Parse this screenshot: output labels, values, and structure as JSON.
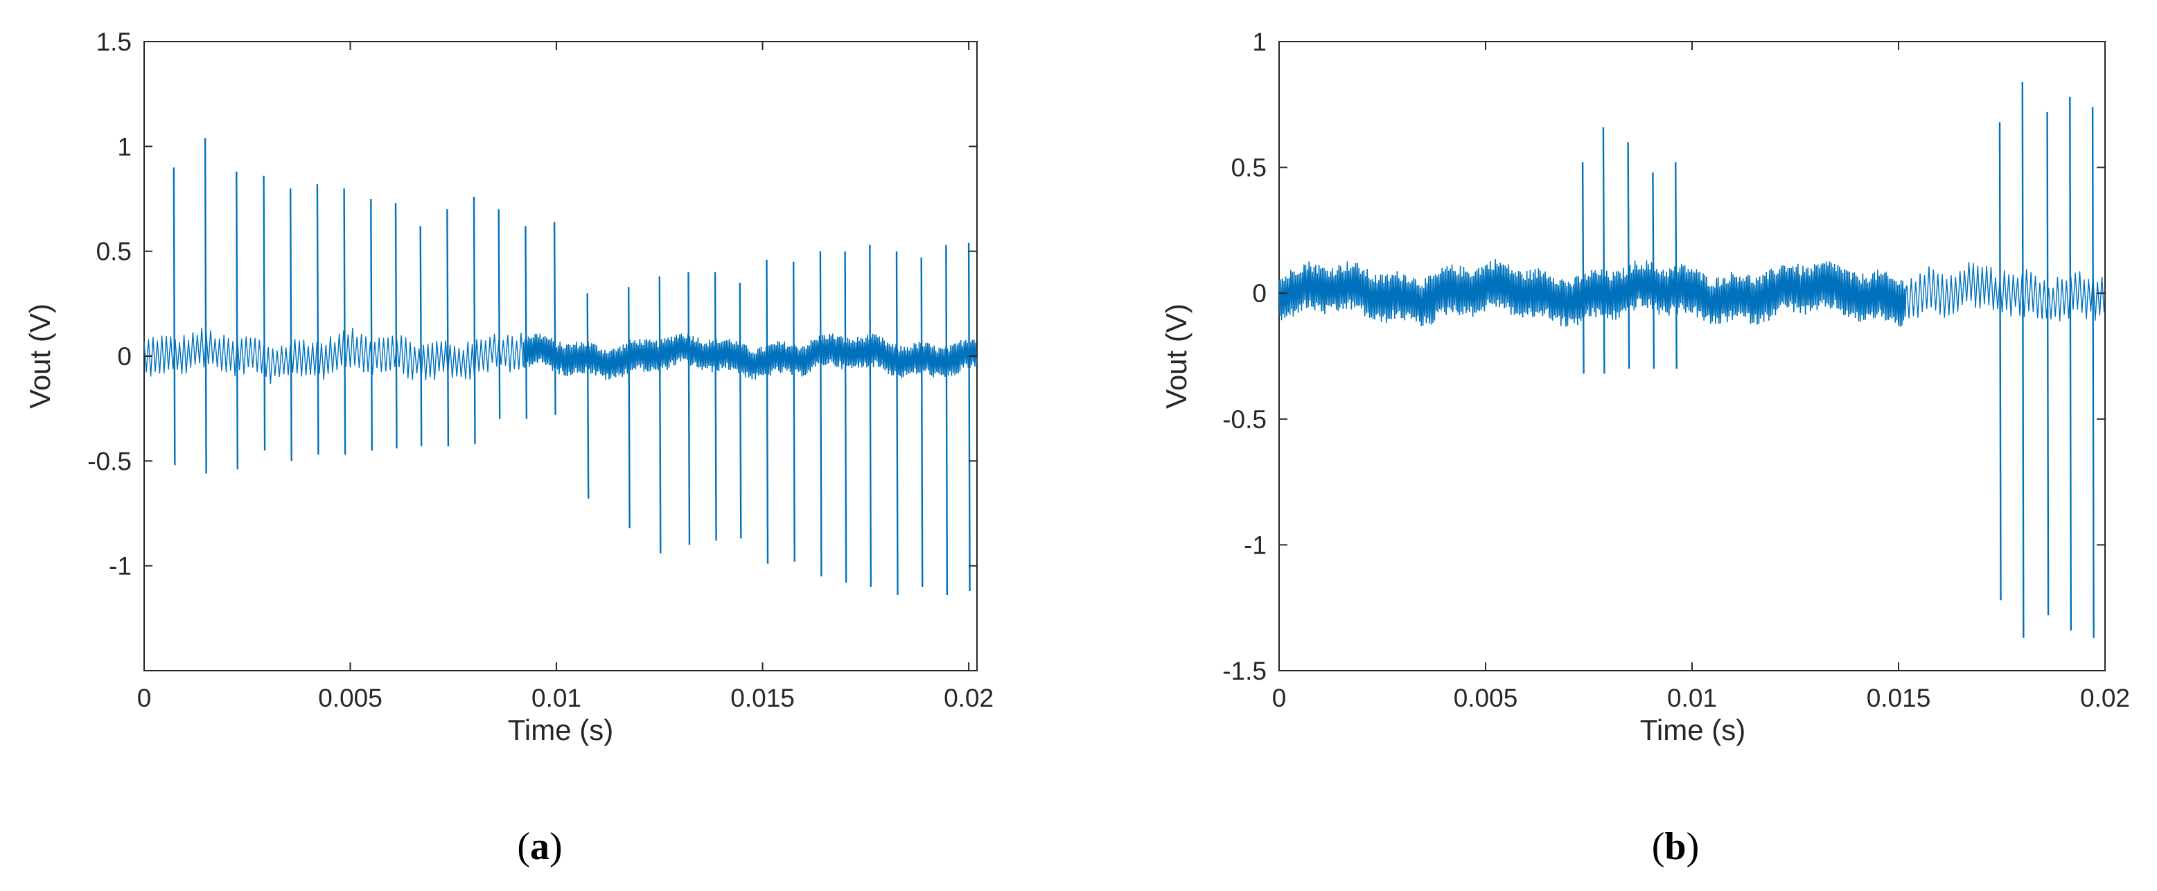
{
  "chart_data": [
    {
      "panel_label": "a",
      "type": "line",
      "xlabel": "Time (s)",
      "ylabel": "Vout (V)",
      "xlim": [
        0,
        0.0202
      ],
      "ylim": [
        -1.5,
        1.5
      ],
      "xticks": [
        "0",
        "0.005",
        "0.01",
        "0.015",
        "0.02"
      ],
      "xtick_values": [
        0,
        0.005,
        0.01,
        0.015,
        0.02
      ],
      "yticks": [
        "1.5",
        "1",
        "0.5",
        "0",
        "-0.5",
        "-1"
      ],
      "ytick_values": [
        1.5,
        1,
        0.5,
        0,
        -0.5,
        -1
      ],
      "grid": false,
      "color": "#0072BD",
      "baseline": {
        "segments": [
          {
            "x0": 0,
            "x1": 0.0092,
            "amplitude": 0.1,
            "density": "sparse"
          },
          {
            "x0": 0.0092,
            "x1": 0.0202,
            "amplitude": 0.08,
            "density": "dense"
          }
        ]
      },
      "spikes": [
        {
          "x": 0.00072,
          "max": 0.9,
          "min": -0.52
        },
        {
          "x": 0.00148,
          "max": 1.04,
          "min": -0.56
        },
        {
          "x": 0.00224,
          "max": 0.88,
          "min": -0.54
        },
        {
          "x": 0.0029,
          "max": 0.86,
          "min": -0.45
        },
        {
          "x": 0.00355,
          "max": 0.8,
          "min": -0.5
        },
        {
          "x": 0.0042,
          "max": 0.82,
          "min": -0.47
        },
        {
          "x": 0.00485,
          "max": 0.8,
          "min": -0.47
        },
        {
          "x": 0.0055,
          "max": 0.75,
          "min": -0.45
        },
        {
          "x": 0.0061,
          "max": 0.73,
          "min": -0.44
        },
        {
          "x": 0.0067,
          "max": 0.62,
          "min": -0.43
        },
        {
          "x": 0.00735,
          "max": 0.7,
          "min": -0.43
        },
        {
          "x": 0.008,
          "max": 0.76,
          "min": -0.42
        },
        {
          "x": 0.0086,
          "max": 0.7,
          "min": -0.3
        },
        {
          "x": 0.00925,
          "max": 0.62,
          "min": -0.3
        },
        {
          "x": 0.00995,
          "max": 0.64,
          "min": -0.28
        },
        {
          "x": 0.01075,
          "max": 0.3,
          "min": -0.68
        },
        {
          "x": 0.01175,
          "max": 0.33,
          "min": -0.82
        },
        {
          "x": 0.0125,
          "max": 0.38,
          "min": -0.94
        },
        {
          "x": 0.0132,
          "max": 0.4,
          "min": -0.9
        },
        {
          "x": 0.01385,
          "max": 0.4,
          "min": -0.88
        },
        {
          "x": 0.01445,
          "max": 0.35,
          "min": -0.87
        },
        {
          "x": 0.0151,
          "max": 0.46,
          "min": -0.99
        },
        {
          "x": 0.01575,
          "max": 0.45,
          "min": -0.98
        },
        {
          "x": 0.0164,
          "max": 0.5,
          "min": -1.05
        },
        {
          "x": 0.017,
          "max": 0.5,
          "min": -1.08
        },
        {
          "x": 0.0176,
          "max": 0.53,
          "min": -1.1
        },
        {
          "x": 0.01825,
          "max": 0.5,
          "min": -1.14
        },
        {
          "x": 0.01885,
          "max": 0.47,
          "min": -1.1
        },
        {
          "x": 0.01945,
          "max": 0.53,
          "min": -1.14
        },
        {
          "x": 0.02,
          "max": 0.54,
          "min": -1.12
        }
      ]
    },
    {
      "panel_label": "b",
      "type": "line",
      "xlabel": "Time (s)",
      "ylabel": "Vout (V)",
      "xlim": [
        0,
        0.02
      ],
      "ylim": [
        -1.5,
        1
      ],
      "xticks": [
        "0",
        "0.005",
        "0.01",
        "0.015",
        "0.02"
      ],
      "xtick_values": [
        0,
        0.005,
        0.01,
        0.015,
        0.02
      ],
      "yticks": [
        "1",
        "0.5",
        "0",
        "-0.5",
        "-1",
        "-1.5"
      ],
      "ytick_values": [
        1,
        0.5,
        0,
        -0.5,
        -1,
        -1.5
      ],
      "grid": false,
      "color": "#0072BD",
      "baseline": {
        "segments": [
          {
            "x0": 0,
            "x1": 0.0152,
            "amplitude": 0.1,
            "density": "dense"
          },
          {
            "x0": 0.0152,
            "x1": 0.02,
            "amplitude": 0.1,
            "density": "sparse"
          }
        ]
      },
      "spikes": [
        {
          "x": 0.00735,
          "max": 0.52,
          "min": -0.32
        },
        {
          "x": 0.00785,
          "max": 0.66,
          "min": -0.32
        },
        {
          "x": 0.00845,
          "max": 0.6,
          "min": -0.3
        },
        {
          "x": 0.00905,
          "max": 0.48,
          "min": -0.3
        },
        {
          "x": 0.0096,
          "max": 0.52,
          "min": -0.3
        },
        {
          "x": 0.01745,
          "max": 0.68,
          "min": -1.22
        },
        {
          "x": 0.018,
          "max": 0.84,
          "min": -1.37
        },
        {
          "x": 0.0186,
          "max": 0.72,
          "min": -1.28
        },
        {
          "x": 0.01915,
          "max": 0.78,
          "min": -1.34
        },
        {
          "x": 0.0197,
          "max": 0.74,
          "min": -1.37
        }
      ]
    }
  ]
}
